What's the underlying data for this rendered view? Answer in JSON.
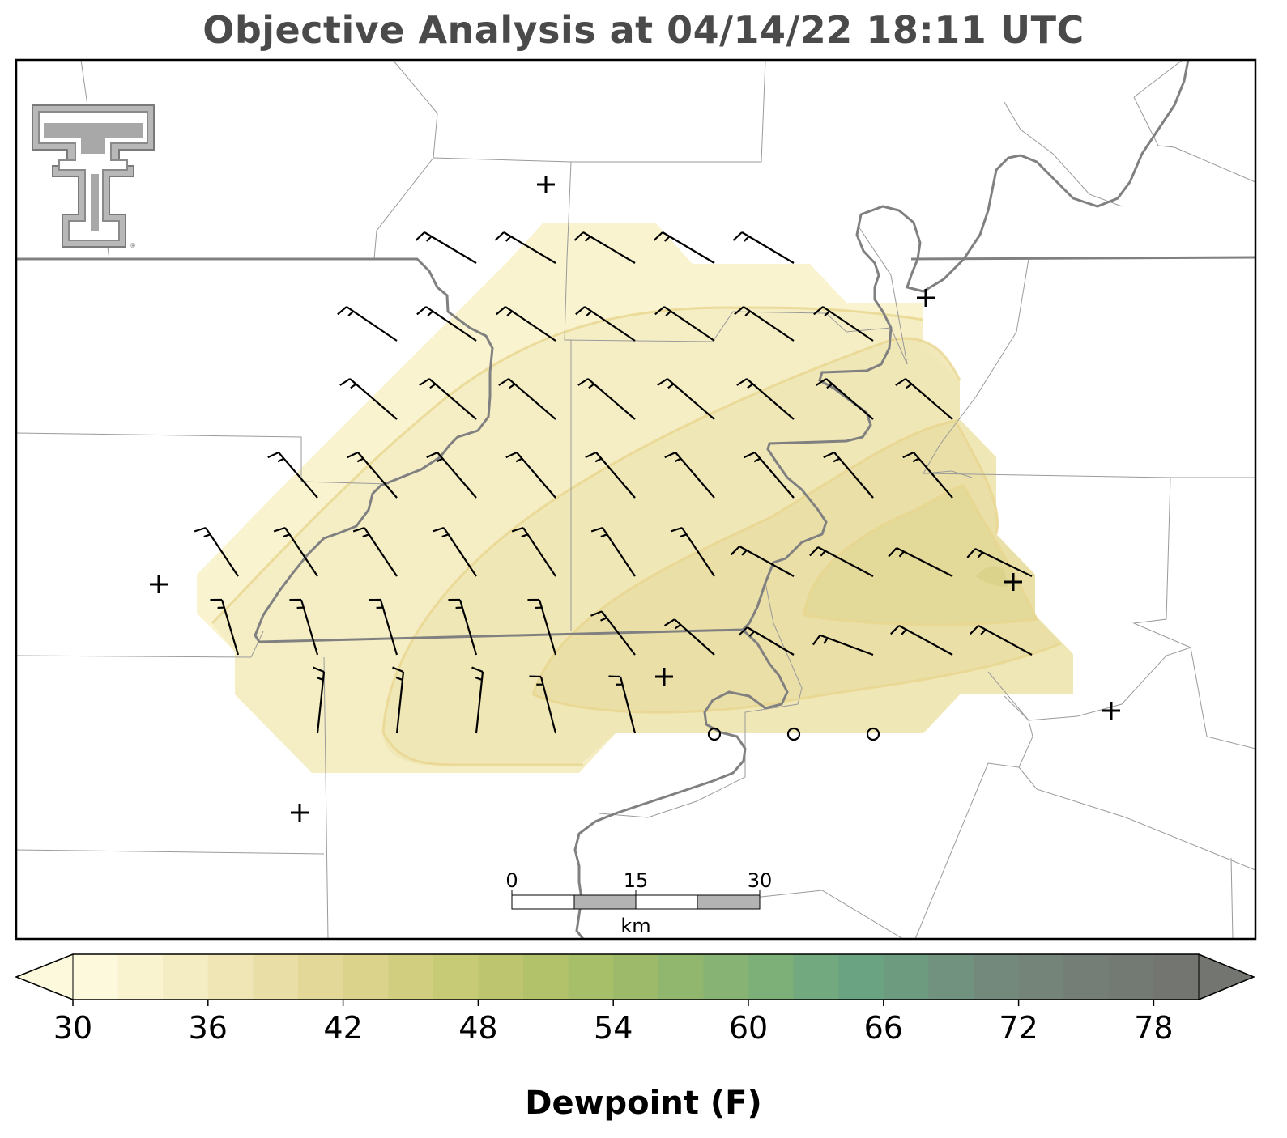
{
  "title": "Objective Analysis at 04/14/22 18:11 UTC",
  "colorbar": {
    "label": "Dewpoint (F)",
    "min": 30,
    "max": 80,
    "step": 2,
    "tick_labels": [
      "30",
      "36",
      "42",
      "48",
      "54",
      "60",
      "66",
      "72",
      "78"
    ],
    "colors": [
      "#fcf9dc",
      "#f9f3cf",
      "#f4ecc2",
      "#efe5b5",
      "#e9dea6",
      "#e3d898",
      "#dbd38b",
      "#d2ce80",
      "#c8cb76",
      "#bdc66f",
      "#b2c26a",
      "#a8bf69",
      "#9cba6a",
      "#91b76f",
      "#87b474",
      "#7daf78",
      "#73a97e",
      "#6aa381",
      "#6c9b80",
      "#70927f",
      "#73897c",
      "#748479",
      "#747e76",
      "#737a73",
      "#727570"
    ]
  },
  "scale_bar": {
    "unit": "km",
    "labels": [
      "0",
      "15",
      "30"
    ]
  },
  "logo": {
    "text": "TT",
    "icon": "texas-tech-logo"
  },
  "chart_data": {
    "type": "contour",
    "variable": "Dewpoint",
    "units": "F",
    "analysis_time": "04/14/22 18:11 UTC",
    "contour_levels_shown": [
      34,
      36,
      38,
      40
    ],
    "station_markers": {
      "plus": 8,
      "calm_circle": 3
    }
  }
}
